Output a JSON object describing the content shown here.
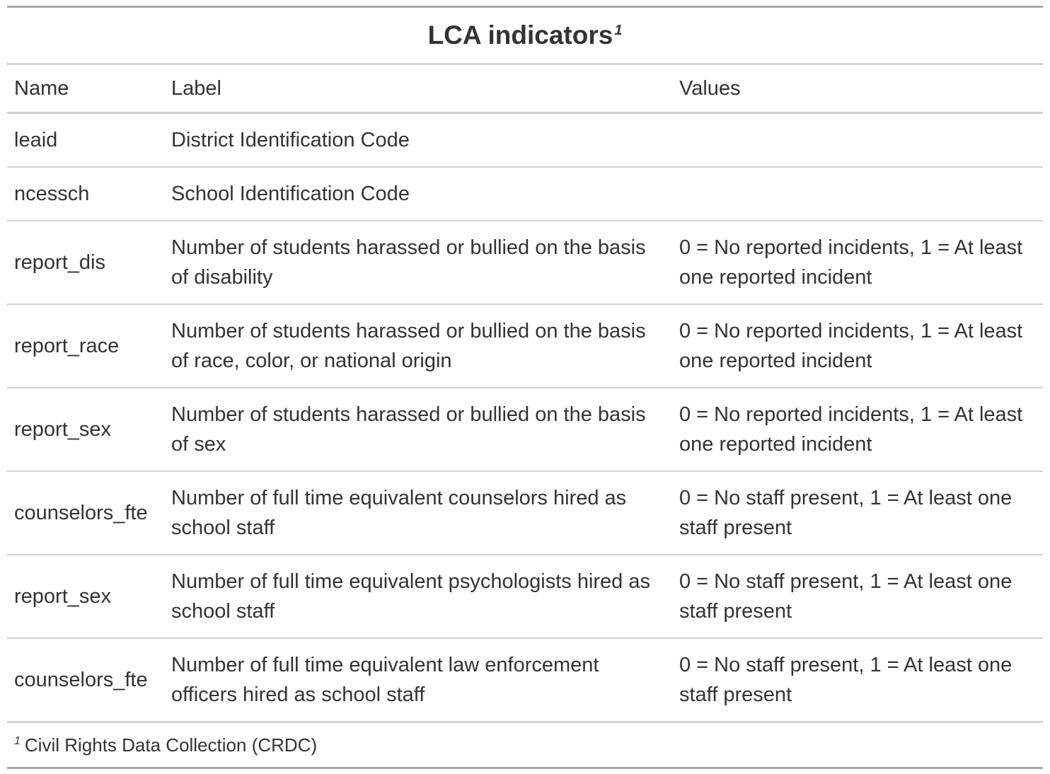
{
  "table": {
    "title": "LCA indicators",
    "title_footnote_mark": "1",
    "columns": {
      "name": "Name",
      "label": "Label",
      "values": "Values"
    },
    "rows": [
      {
        "name": "leaid",
        "label": "District Identification Code",
        "values": ""
      },
      {
        "name": "ncessch",
        "label": "School Identification Code",
        "values": ""
      },
      {
        "name": "report_dis",
        "label": "Number of students harassed or bullied on the basis of disability",
        "values": "0 = No reported incidents, 1 = At least one reported incident"
      },
      {
        "name": "report_race",
        "label": "Number of students harassed or bullied on the basis of race, color, or national origin",
        "values": "0 = No reported incidents, 1 = At least one reported incident"
      },
      {
        "name": "report_sex",
        "label": "Number of students harassed or bullied on the basis of sex",
        "values": "0 = No reported incidents, 1 = At least one reported incident"
      },
      {
        "name": "counselors_fte",
        "label": "Number of full time equivalent counselors hired as school staff",
        "values": "0 = No staff present, 1 = At least one staff present"
      },
      {
        "name": "report_sex",
        "label": "Number of full time equivalent psychologists hired as school staff",
        "values": "0 = No staff present, 1 = At least one staff present"
      },
      {
        "name": "counselors_fte",
        "label": "Number of full time equivalent law enforcement officers hired as school staff",
        "values": "0 = No staff present, 1 = At least one staff present"
      }
    ],
    "footnote_mark": "1",
    "footnote": "Civil Rights Data Collection (CRDC)"
  }
}
